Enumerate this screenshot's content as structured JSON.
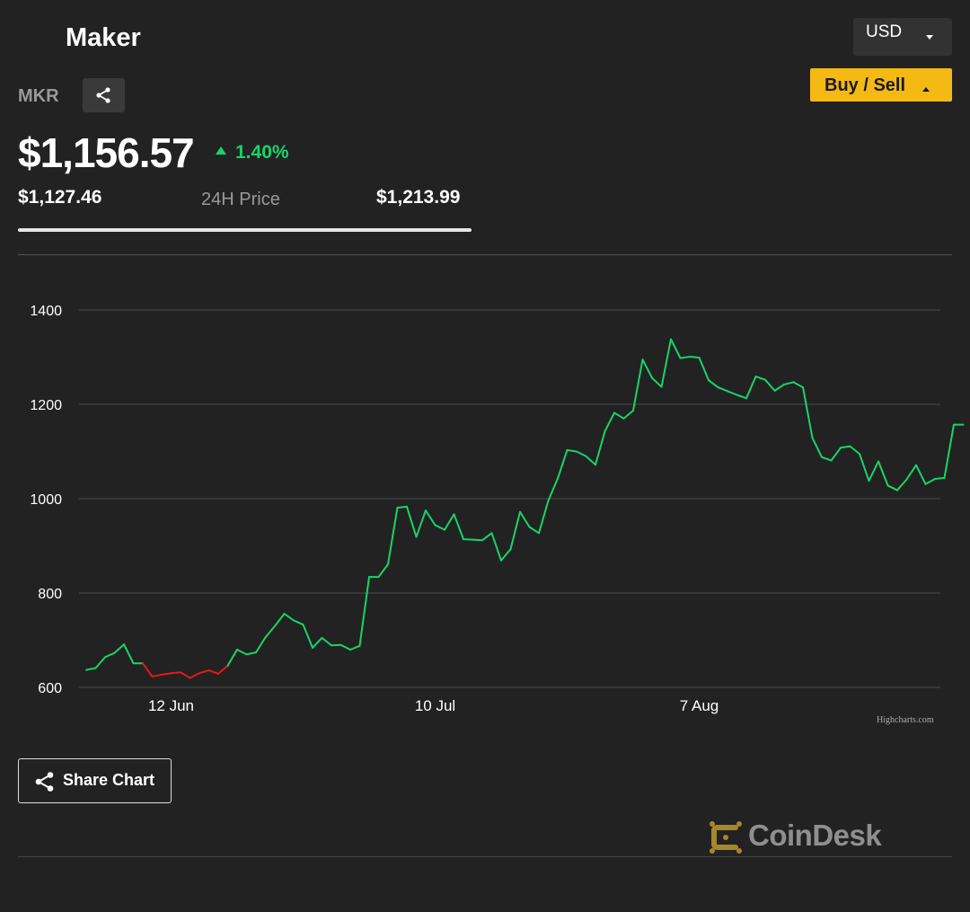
{
  "coin": {
    "name": "Maker",
    "symbol": "MKR",
    "price": "$1,156.57",
    "change_pct": "1.40%",
    "low_24h": "$1,127.46",
    "high_24h": "$1,213.99",
    "range_label": "24H Price"
  },
  "controls": {
    "currency": "USD",
    "buy_sell_label": "Buy / Sell",
    "share_chart_label": "Share Chart"
  },
  "colors": {
    "background": "#222222",
    "up": "#17d46a",
    "down": "#e41a1a",
    "accent": "#f5b914"
  },
  "chart_credit": "Highcharts.com",
  "brand": "CoinDesk",
  "chart_data": {
    "type": "line",
    "title": "",
    "xlabel": "",
    "ylabel": "",
    "ylim": [
      600,
      1400
    ],
    "yticks": [
      600,
      800,
      1000,
      1200,
      1400
    ],
    "xticks": [
      {
        "day": 9,
        "label": "12 Jun"
      },
      {
        "day": 37,
        "label": "10 Jul"
      },
      {
        "day": 65,
        "label": "7 Aug"
      }
    ],
    "grid": true,
    "series": [
      {
        "values": [
          637,
          641,
          664,
          673,
          691,
          651,
          651,
          623,
          627,
          630,
          632,
          620,
          630,
          636,
          629,
          646,
          680,
          670,
          674,
          706,
          730,
          756,
          742,
          733,
          684,
          705,
          689,
          690,
          680,
          688,
          834,
          834,
          861,
          981,
          983,
          919,
          975,
          944,
          934,
          967,
          914,
          913,
          912,
          927,
          869,
          893,
          972,
          940,
          927,
          996,
          1043,
          1103,
          1100,
          1090,
          1072,
          1143,
          1182,
          1170,
          1187,
          1295,
          1256,
          1237,
          1338,
          1298,
          1301,
          1299,
          1251,
          1236,
          1228,
          1220,
          1213,
          1259,
          1252,
          1229,
          1242,
          1247,
          1236,
          1129,
          1088,
          1081,
          1108,
          1111,
          1095,
          1038,
          1079,
          1028,
          1018,
          1041,
          1071,
          1031,
          1042,
          1044,
          1157,
          1157
        ]
      }
    ]
  }
}
